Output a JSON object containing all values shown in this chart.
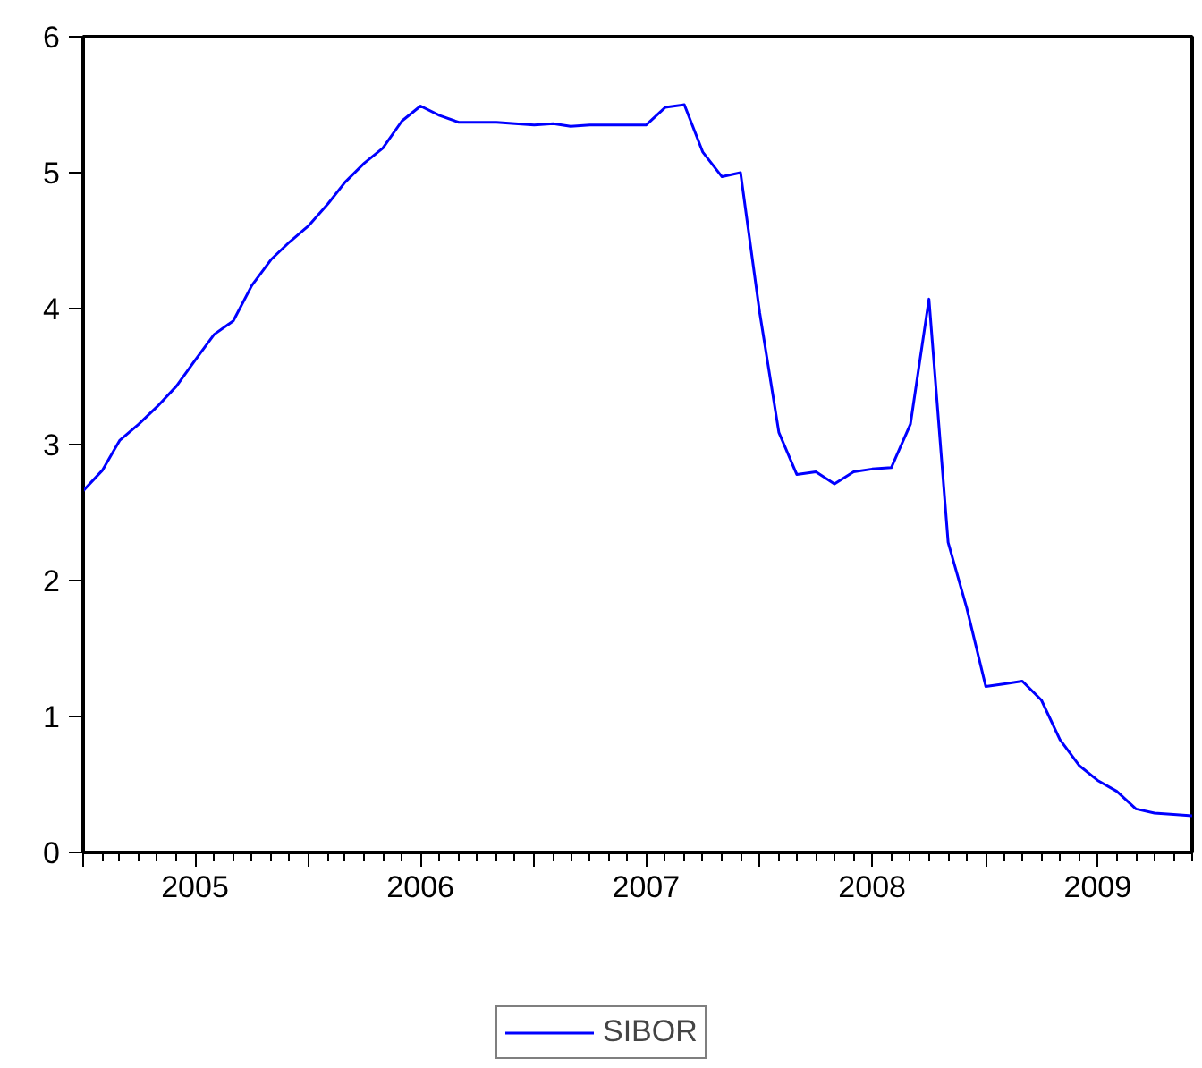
{
  "chart_data": {
    "type": "line",
    "x": [
      "2005-01",
      "2005-02",
      "2005-03",
      "2005-04",
      "2005-05",
      "2005-06",
      "2005-07",
      "2005-08",
      "2005-09",
      "2005-10",
      "2005-11",
      "2005-12",
      "2006-01",
      "2006-02",
      "2006-03",
      "2006-04",
      "2006-05",
      "2006-06",
      "2006-07",
      "2006-08",
      "2006-09",
      "2006-10",
      "2006-11",
      "2006-12",
      "2007-01",
      "2007-02",
      "2007-03",
      "2007-04",
      "2007-05",
      "2007-06",
      "2007-07",
      "2007-08",
      "2007-09",
      "2007-10",
      "2007-11",
      "2007-12",
      "2008-01",
      "2008-02",
      "2008-03",
      "2008-04",
      "2008-05",
      "2008-06",
      "2008-07",
      "2008-08",
      "2008-09",
      "2008-10",
      "2008-11",
      "2008-12",
      "2009-01",
      "2009-02",
      "2009-03",
      "2009-04",
      "2009-05",
      "2009-06",
      "2009-07",
      "2009-08",
      "2009-09",
      "2009-10",
      "2009-11",
      "2009-12"
    ],
    "series": [
      {
        "name": "SIBOR",
        "color": "#0000ff",
        "values": [
          2.66,
          2.81,
          3.03,
          3.15,
          3.28,
          3.43,
          3.62,
          3.81,
          3.91,
          4.17,
          4.36,
          4.49,
          4.61,
          4.77,
          4.93,
          5.07,
          5.18,
          5.38,
          5.49,
          5.42,
          5.37,
          5.37,
          5.37,
          5.36,
          5.35,
          5.36,
          5.34,
          5.35,
          5.35,
          5.35,
          5.35,
          5.48,
          5.5,
          5.15,
          4.97,
          5.0,
          3.97,
          3.09,
          2.78,
          2.8,
          2.71,
          2.8,
          2.82,
          2.83,
          3.15,
          4.07,
          2.28,
          1.8,
          1.22,
          1.24,
          1.26,
          1.12,
          0.83,
          0.64,
          0.53,
          0.45,
          0.32,
          0.29,
          0.28,
          0.27
        ]
      }
    ],
    "xlim": [
      "2005-01",
      "2009-12"
    ],
    "xticks": [
      {
        "value": "2005-01",
        "label": null
      },
      {
        "value": "2005-07",
        "label": "2005"
      },
      {
        "value": "2006-01",
        "label": null
      },
      {
        "value": "2006-07",
        "label": "2006"
      },
      {
        "value": "2007-01",
        "label": null
      },
      {
        "value": "2007-07",
        "label": "2007"
      },
      {
        "value": "2008-01",
        "label": null
      },
      {
        "value": "2008-07",
        "label": "2008"
      },
      {
        "value": "2009-01",
        "label": null
      },
      {
        "value": "2009-07",
        "label": "2009"
      }
    ],
    "ylim": [
      0,
      6
    ],
    "yticks": [
      0,
      1,
      2,
      3,
      4,
      5,
      6
    ],
    "grid": false,
    "legend": "bottom",
    "marker": "none",
    "line_style": "solid"
  }
}
